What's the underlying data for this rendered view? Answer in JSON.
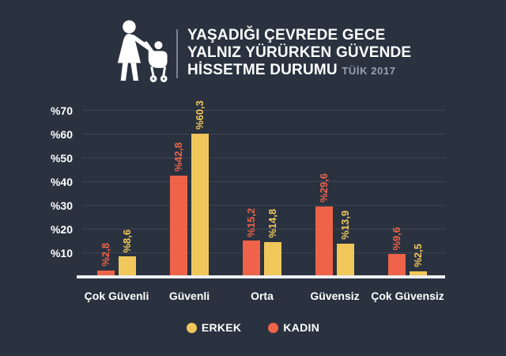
{
  "page": {
    "background": "#2a3240"
  },
  "header": {
    "title_line1": "YAŞADIĞI ÇEVREDE GECE",
    "title_line2": "YALNIZ YÜRÜRKEN GÜVENDE",
    "title_line3": "HİSSETME DURUMU",
    "title_suffix": "TÜİK 2017"
  },
  "chart_data": {
    "type": "bar",
    "title": "YAŞADIĞI ÇEVREDE GECE YALNIZ YÜRÜRKEN GÜVENDE HİSSETME DURUMU (TÜİK 2017)",
    "categories": [
      "Çok Güvenli",
      "Güvenli",
      "Orta",
      "Güvensiz",
      "Çok Güvensiz"
    ],
    "series": [
      {
        "name": "KADIN",
        "color": "#ee6349",
        "values": [
          2.8,
          42.8,
          15.2,
          29.6,
          9.6
        ],
        "labels": [
          "%2,8",
          "%42,8",
          "%15,2",
          "%29,6",
          "%9,6"
        ]
      },
      {
        "name": "ERKEK",
        "color": "#f0c75a",
        "values": [
          8.6,
          60.3,
          14.8,
          13.9,
          2.5
        ],
        "labels": [
          "%8,6",
          "%60,3",
          "%14,8",
          "%13,9",
          "%2,5"
        ]
      }
    ],
    "ticks": [
      {
        "value": 10,
        "label": "%10"
      },
      {
        "value": 20,
        "label": "%20"
      },
      {
        "value": 30,
        "label": "%30"
      },
      {
        "value": 40,
        "label": "%40"
      },
      {
        "value": 50,
        "label": "%50"
      },
      {
        "value": 60,
        "label": "%60"
      },
      {
        "value": 70,
        "label": "%70"
      }
    ],
    "ylim": [
      0,
      70
    ],
    "grid": true,
    "legend_position": "bottom",
    "legend": [
      {
        "label": "ERKEK",
        "color": "#f0c75a"
      },
      {
        "label": "KADIN",
        "color": "#ee6349"
      }
    ]
  }
}
